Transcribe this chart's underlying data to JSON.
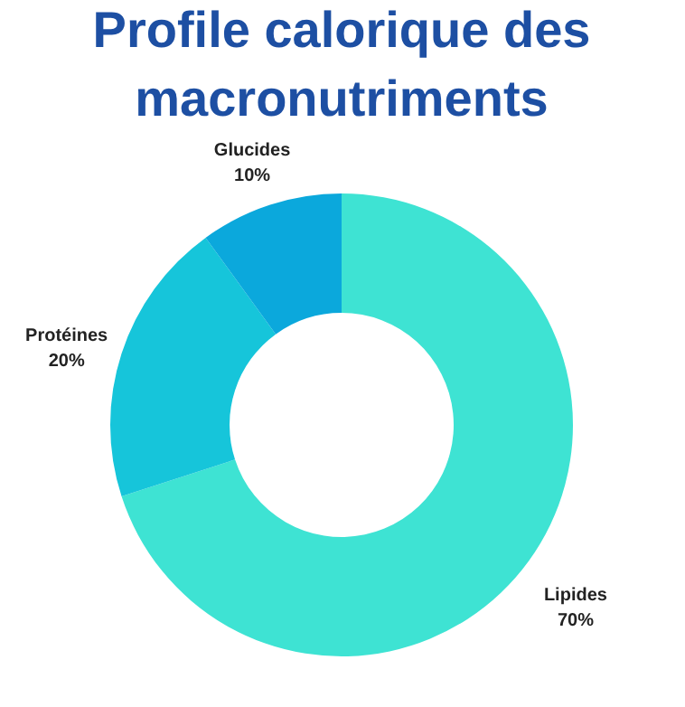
{
  "chart_data": {
    "type": "donut",
    "title": "Profile calorique des macronutriments",
    "categories": [
      "Lipides",
      "Protéines",
      "Glucides"
    ],
    "values": [
      70,
      20,
      10
    ],
    "colors": [
      "#3ee3d3",
      "#16c5da",
      "#0ba8dc"
    ],
    "value_labels": [
      "70%",
      "20%",
      "10%"
    ],
    "legend": false
  }
}
